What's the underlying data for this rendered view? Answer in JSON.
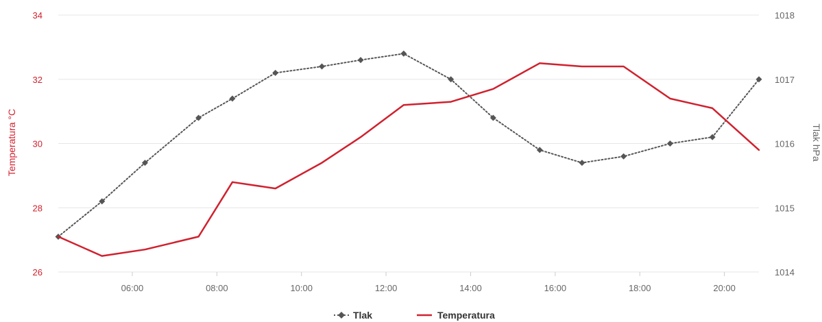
{
  "chart_data": {
    "type": "line",
    "x_ticks": [
      "06:00",
      "08:00",
      "10:00",
      "12:00",
      "14:00",
      "16:00",
      "18:00",
      "20:00"
    ],
    "y_left": {
      "label": "Temperatura °C",
      "ticks": [
        "26",
        "28",
        "30",
        "32",
        "34"
      ],
      "range": [
        26,
        34
      ],
      "color": "#d0212e"
    },
    "y_right": {
      "label": "Tlak hPa",
      "ticks": [
        "1014",
        "1015",
        "1016",
        "1017",
        "1018"
      ],
      "range": [
        1014,
        1018
      ],
      "color": "#666666"
    },
    "grid": true,
    "legend_position": "bottom-center",
    "series": [
      {
        "name": "Tlak",
        "axis": "right",
        "style": "dotted",
        "marker": "diamond",
        "color": "#555555",
        "points": [
          {
            "x": "04:15",
            "y": 1014.55
          },
          {
            "x": "05:17",
            "y": 1015.1
          },
          {
            "x": "06:18",
            "y": 1015.7
          },
          {
            "x": "07:34",
            "y": 1016.4
          },
          {
            "x": "08:22",
            "y": 1016.7
          },
          {
            "x": "09:23",
            "y": 1017.1
          },
          {
            "x": "10:29",
            "y": 1017.2
          },
          {
            "x": "11:24",
            "y": 1017.3
          },
          {
            "x": "12:25",
            "y": 1017.4
          },
          {
            "x": "13:32",
            "y": 1017.0
          },
          {
            "x": "14:32",
            "y": 1016.4
          },
          {
            "x": "15:38",
            "y": 1015.9
          },
          {
            "x": "16:38",
            "y": 1015.7
          },
          {
            "x": "17:37",
            "y": 1015.8
          },
          {
            "x": "18:43",
            "y": 1016.0
          },
          {
            "x": "19:43",
            "y": 1016.1
          },
          {
            "x": "20:49",
            "y": 1017.0
          }
        ]
      },
      {
        "name": "Temperatura",
        "axis": "left",
        "style": "solid",
        "marker": "none",
        "color": "#d0212e",
        "points": [
          {
            "x": "04:15",
            "y": 27.1
          },
          {
            "x": "05:17",
            "y": 26.5
          },
          {
            "x": "06:18",
            "y": 26.7
          },
          {
            "x": "07:34",
            "y": 27.1
          },
          {
            "x": "08:22",
            "y": 28.8
          },
          {
            "x": "09:23",
            "y": 28.6
          },
          {
            "x": "10:29",
            "y": 29.4
          },
          {
            "x": "11:24",
            "y": 30.2
          },
          {
            "x": "12:25",
            "y": 31.2
          },
          {
            "x": "13:32",
            "y": 31.3
          },
          {
            "x": "14:32",
            "y": 31.7
          },
          {
            "x": "15:38",
            "y": 32.5
          },
          {
            "x": "16:38",
            "y": 32.4
          },
          {
            "x": "17:37",
            "y": 32.4
          },
          {
            "x": "18:43",
            "y": 31.4
          },
          {
            "x": "19:43",
            "y": 31.1
          },
          {
            "x": "20:49",
            "y": 29.8
          }
        ]
      }
    ]
  }
}
